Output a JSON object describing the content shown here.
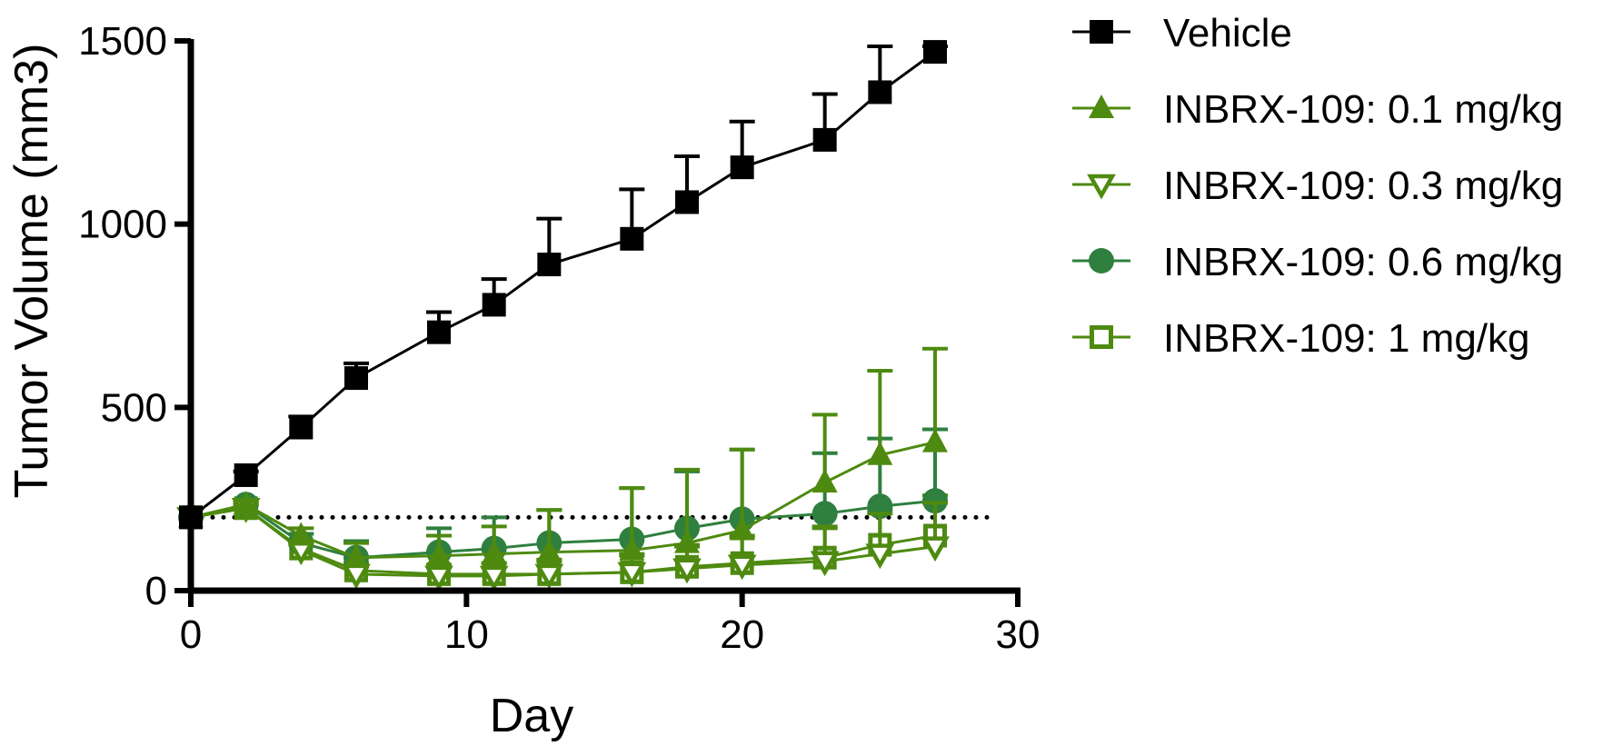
{
  "chart_data": {
    "type": "line",
    "title": "",
    "xlabel": "Day",
    "ylabel": "Tumor Volume (mm3)",
    "xlim": [
      0,
      30
    ],
    "ylim": [
      0,
      1500
    ],
    "xticks": [
      0,
      10,
      20,
      30
    ],
    "yticks": [
      0,
      500,
      1000,
      1500
    ],
    "reference_line": {
      "y": 200,
      "style": "dotted",
      "color": "#000000"
    },
    "legend_position": "right",
    "x": [
      0,
      2,
      4,
      6,
      9,
      11,
      13,
      16,
      18,
      20,
      23,
      25,
      27
    ],
    "series": [
      {
        "name": "Vehicle",
        "marker": "square-filled",
        "color": "#000000",
        "values": [
          200,
          315,
          445,
          580,
          705,
          780,
          890,
          960,
          1060,
          1155,
          1230,
          1360,
          1470
        ],
        "errors": [
          0,
          10,
          30,
          40,
          55,
          70,
          125,
          135,
          125,
          125,
          125,
          125,
          15
        ]
      },
      {
        "name": "INBRX-109: 0.1 mg/kg",
        "marker": "triangle-filled",
        "color": "#4e8a10",
        "values": [
          200,
          235,
          150,
          90,
          95,
          100,
          105,
          110,
          130,
          165,
          295,
          370,
          405
        ],
        "errors": [
          0,
          10,
          20,
          40,
          55,
          75,
          115,
          170,
          200,
          220,
          185,
          230,
          255
        ]
      },
      {
        "name": "INBRX-109: 0.3 mg/kg",
        "marker": "triangle-down-open",
        "color": "#4e8a10",
        "values": [
          200,
          225,
          110,
          45,
          40,
          40,
          45,
          50,
          60,
          70,
          80,
          100,
          120
        ],
        "errors": [
          0,
          10,
          15,
          20,
          30,
          35,
          40,
          50,
          65,
          80,
          95,
          110,
          120
        ]
      },
      {
        "name": "INBRX-109: 0.6 mg/kg",
        "marker": "circle-filled",
        "color": "#2f7f3f",
        "values": [
          200,
          235,
          130,
          90,
          105,
          115,
          130,
          140,
          170,
          195,
          210,
          230,
          245
        ],
        "errors": [
          0,
          10,
          25,
          45,
          65,
          85,
          90,
          140,
          155,
          190,
          165,
          185,
          195
        ]
      },
      {
        "name": "INBRX-109: 1 mg/kg",
        "marker": "square-open",
        "color": "#4e8a10",
        "values": [
          200,
          225,
          115,
          55,
          45,
          45,
          45,
          50,
          65,
          75,
          90,
          125,
          150
        ],
        "errors": [
          0,
          10,
          15,
          20,
          25,
          30,
          35,
          45,
          55,
          70,
          80,
          95,
          110
        ]
      }
    ]
  }
}
